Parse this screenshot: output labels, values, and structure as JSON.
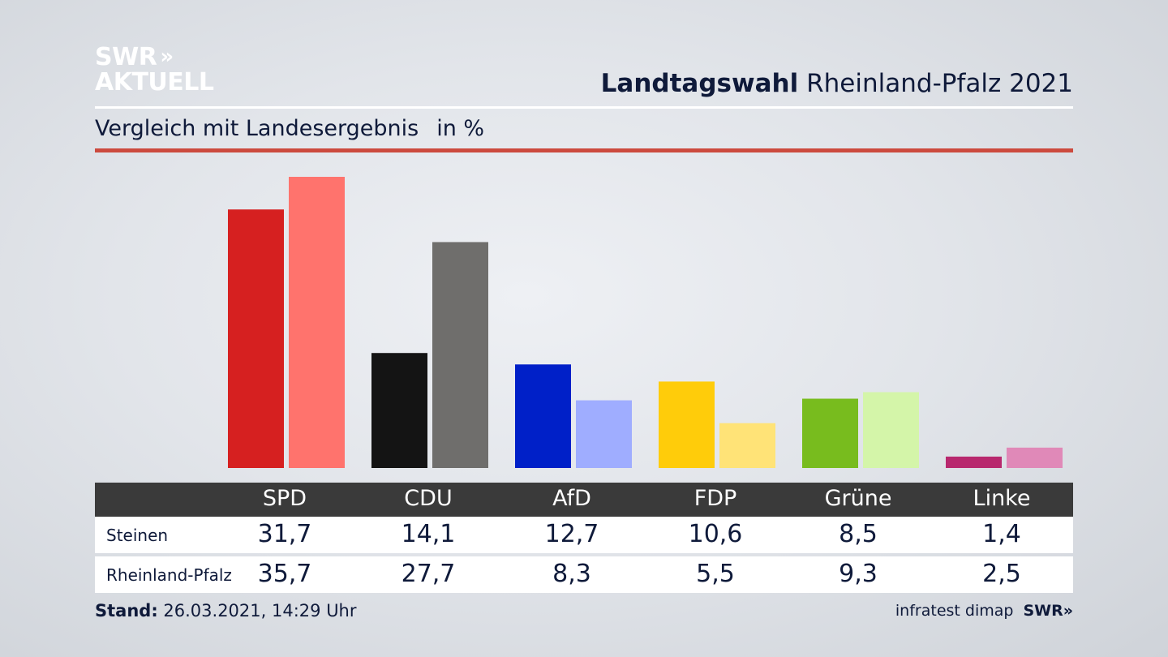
{
  "logo": {
    "line1": "SWR",
    "chevrons": "»",
    "line2": "AKTUELL"
  },
  "header": {
    "title_bold": "Landtagswahl",
    "title_rest": "Rheinland-Pfalz 2021"
  },
  "subtitle": {
    "text": "Vergleich mit Landesergebnis",
    "unit": "in %"
  },
  "colors": {
    "accent_rule": "#cc4a3e",
    "table_header": "#3a3a3a"
  },
  "chart_data": {
    "type": "bar",
    "categories": [
      "SPD",
      "CDU",
      "AfD",
      "FDP",
      "Grüne",
      "Linke"
    ],
    "series": [
      {
        "name": "Steinen",
        "values": [
          31.7,
          14.1,
          12.7,
          10.6,
          8.5,
          1.4
        ],
        "colors": [
          "#d62020",
          "#141414",
          "#0020c8",
          "#ffcc0a",
          "#78bc1e",
          "#b8286e"
        ]
      },
      {
        "name": "Rheinland-Pfalz",
        "values": [
          35.7,
          27.7,
          8.3,
          5.5,
          9.3,
          2.5
        ],
        "colors": [
          "#ff736d",
          "#6f6e6c",
          "#9fadff",
          "#ffe377",
          "#d4f5a9",
          "#e089b8"
        ]
      }
    ],
    "ylim": [
      0,
      36
    ],
    "grid": false
  },
  "table": {
    "headers": [
      "SPD",
      "CDU",
      "AfD",
      "FDP",
      "Grüne",
      "Linke"
    ],
    "rows": [
      {
        "label": "Steinen",
        "values": [
          "31,7",
          "14,1",
          "12,7",
          "10,6",
          "8,5",
          "1,4"
        ]
      },
      {
        "label": "Rheinland-Pfalz",
        "values": [
          "35,7",
          "27,7",
          "8,3",
          "5,5",
          "9,3",
          "2,5"
        ]
      }
    ]
  },
  "footer": {
    "stand_label": "Stand:",
    "stand_value": "26.03.2021, 14:29 Uhr",
    "source": "infratest dimap",
    "brand": "SWR»"
  }
}
